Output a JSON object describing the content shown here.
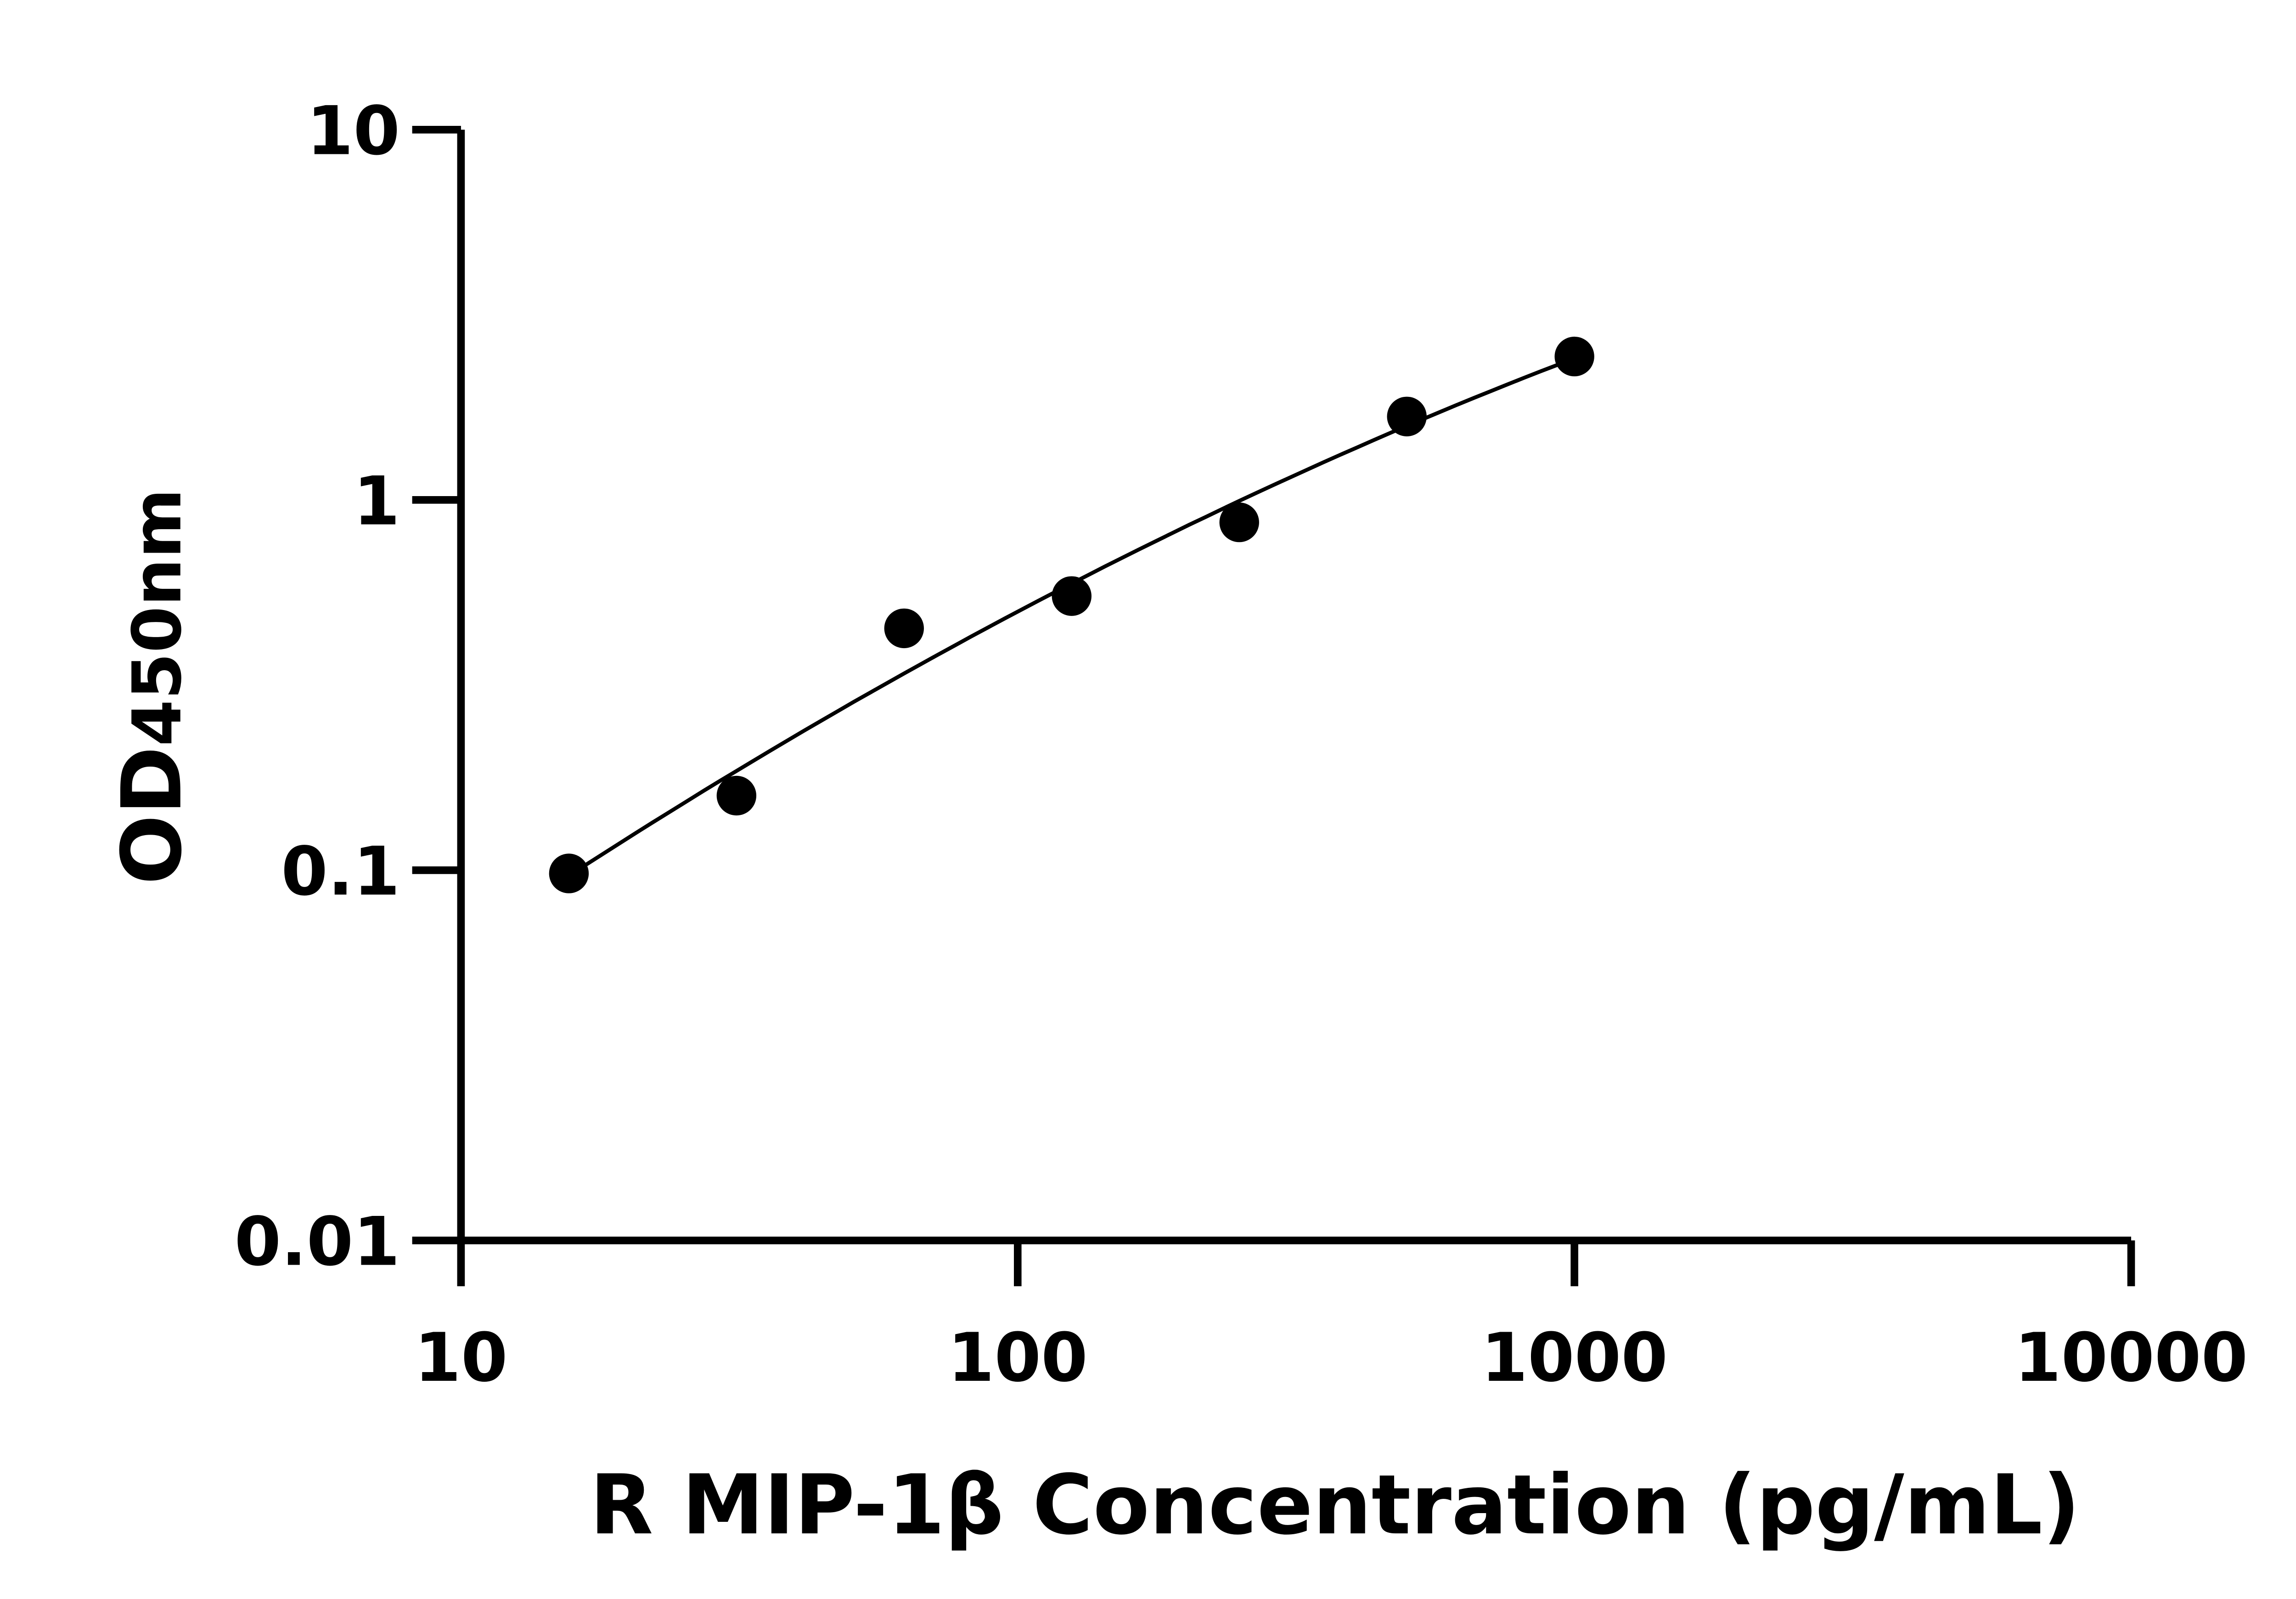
{
  "chart_data": {
    "type": "scatter",
    "xlabel": "R MIP-1β Concentration (pg/mL)",
    "ylabel_main": "OD",
    "ylabel_sub": "450nm",
    "x_scale": "log",
    "y_scale": "log",
    "xlim": [
      10,
      10000
    ],
    "ylim": [
      0.01,
      10
    ],
    "x_ticks": [
      "10",
      "100",
      "1000",
      "10000"
    ],
    "y_ticks": [
      "0.01",
      "0.1",
      "1",
      "10"
    ],
    "grid": false,
    "fit_curve": true,
    "color": "#000000",
    "x": [
      15.625,
      31.25,
      62.5,
      125,
      250,
      500,
      1000
    ],
    "y": [
      0.098,
      0.159,
      0.45,
      0.55,
      0.87,
      1.68,
      2.44
    ]
  }
}
